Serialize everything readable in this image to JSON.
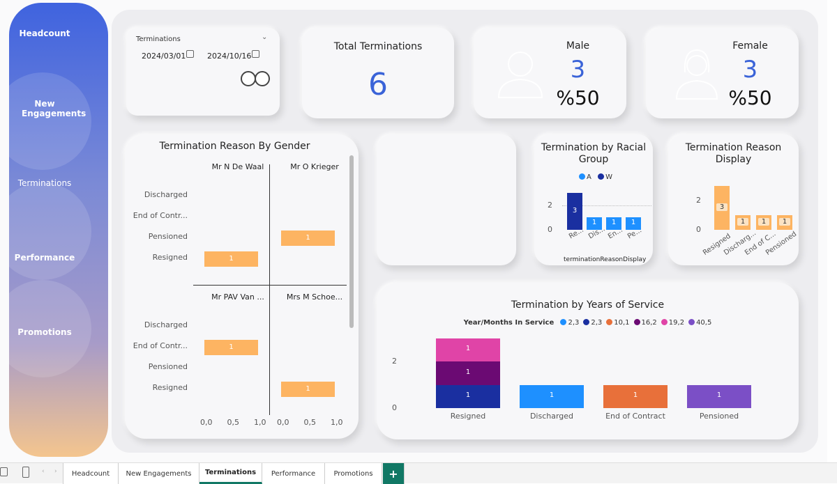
{
  "nav": {
    "items": [
      "Headcount",
      "New Engagements",
      "Terminations",
      "Performance",
      "Promotions"
    ]
  },
  "slicer": {
    "title": "Terminations",
    "start_date": "2024/03/01",
    "end_date": "2024/10/16"
  },
  "kpi": {
    "total_title": "Total Terminations",
    "total_value": "6",
    "male_title": "Male",
    "male_value": "3",
    "male_pct": "%50",
    "female_title": "Female",
    "female_value": "3",
    "female_pct": "%50"
  },
  "chart_data": [
    {
      "type": "bar",
      "orientation": "horizontal",
      "title": "Termination Reason By Gender",
      "categories": [
        "Discharged",
        "End of Contr...",
        "Pensioned",
        "Resigned"
      ],
      "panels": [
        {
          "name": "Mr N De Waal",
          "values": [
            0,
            0,
            0,
            1
          ]
        },
        {
          "name": "Mr O Krieger",
          "values": [
            0,
            0,
            1,
            0
          ]
        },
        {
          "name": "Mr PAV Van ...",
          "values": [
            0,
            1,
            0,
            0
          ]
        },
        {
          "name": "Mrs M Schoe...",
          "values": [
            0,
            0,
            0,
            1
          ]
        }
      ],
      "xticks": [
        "0,0",
        "0,5",
        "1,0"
      ],
      "xlim": [
        0,
        1
      ]
    },
    {
      "type": "bar",
      "title": "Termination by Racial Group",
      "xlabel": "terminationReasonDisplay",
      "legend": [
        "A",
        "W"
      ],
      "categories": [
        "Re...",
        "Dis...",
        "En...",
        "Pe..."
      ],
      "series": [
        {
          "name": "W",
          "values": [
            3,
            0,
            0,
            0
          ]
        },
        {
          "name": "A",
          "values": [
            0,
            1,
            1,
            1
          ]
        }
      ],
      "yticks": [
        "0",
        "2"
      ],
      "ylim": [
        0,
        3
      ]
    },
    {
      "type": "bar",
      "title": "Termination Reason Display",
      "categories": [
        "Resigned",
        "Discharg...",
        "End of C...",
        "Pensioned"
      ],
      "values": [
        3,
        1,
        1,
        1
      ],
      "yticks": [
        "0",
        "2"
      ],
      "ylim": [
        0,
        3
      ]
    },
    {
      "type": "bar",
      "stacked": true,
      "title": "Termination by Years of Service",
      "legend_title": "Year/Months In Service",
      "legend": [
        "2,3",
        "2,3",
        "10,1",
        "16,2",
        "19,2",
        "40,5"
      ],
      "categories": [
        "Resigned",
        "Discharged",
        "End of Contract",
        "Pensioned"
      ],
      "series": [
        {
          "name": "2,3",
          "values": [
            0,
            1,
            0,
            0
          ]
        },
        {
          "name": "2,3",
          "values": [
            1,
            0,
            0,
            0
          ]
        },
        {
          "name": "10,1",
          "values": [
            0,
            0,
            1,
            0
          ]
        },
        {
          "name": "16,2",
          "values": [
            1,
            0,
            0,
            0
          ]
        },
        {
          "name": "19,2",
          "values": [
            1,
            0,
            0,
            0
          ]
        },
        {
          "name": "40,5",
          "values": [
            0,
            0,
            0,
            1
          ]
        }
      ],
      "yticks": [
        "0",
        "2"
      ],
      "ylim": [
        0,
        3
      ]
    }
  ],
  "colors": {
    "accent": "#3a63d8",
    "orange": "#fdb462",
    "navy": "#1a2fa0",
    "blue": "#1e90ff",
    "years": [
      "#1e90ff",
      "#1a2fa0",
      "#e8703a",
      "#6b0a73",
      "#e044a7",
      "#7b4fc6"
    ]
  },
  "tabs": {
    "items": [
      "Headcount",
      "New Engagements",
      "Terminations",
      "Performance",
      "Promotions"
    ],
    "add": "+"
  }
}
